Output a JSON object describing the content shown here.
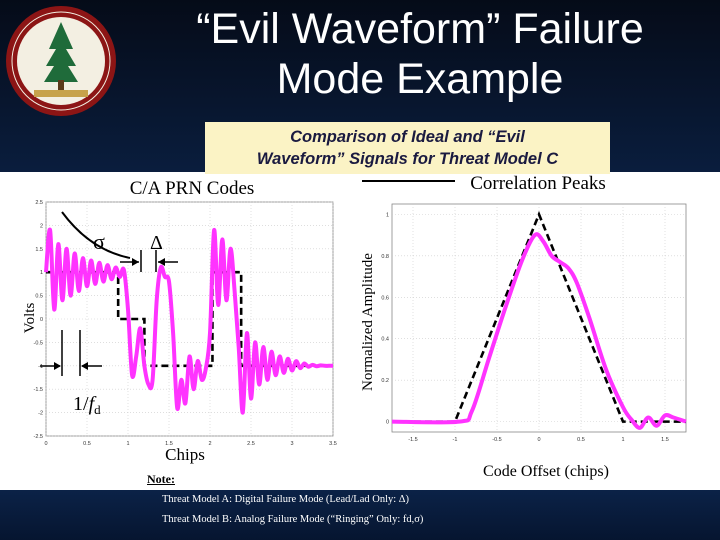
{
  "slide": {
    "title_line1": "“Evil Waveform” Failure",
    "title_line2": "Mode Example",
    "subtitle_line1": "Comparison of Ideal and “Evil",
    "subtitle_line2": "Waveform” Signals for Threat Model C",
    "note_label": "Note:",
    "note_line1": "Threat Model A: Digital Failure Mode (Lead/Lad Only: Δ)",
    "note_line2": "Threat Model B: Analog Failure Mode (“Ringing” Only: fd,σ)"
  },
  "left_chart_labels": {
    "title": "C/A PRN Codes",
    "xlabel": "Chips",
    "ylabel": "Volts",
    "sigma": "σ",
    "delta": "Δ",
    "freq_prefix": "1/",
    "freq_var": "f",
    "freq_sub": "d"
  },
  "right_chart_labels": {
    "title": "Correlation Peaks",
    "xlabel": "Code Offset (chips)",
    "ylabel": "Normalized Amplitude"
  },
  "chart_data": [
    {
      "type": "line",
      "title": "C/A PRN Codes",
      "xlabel": "Chips",
      "ylabel": "Volts",
      "xlim": [
        0,
        3.5
      ],
      "ylim": [
        -2.5,
        2.5
      ],
      "xticks": [
        "0",
        "0.5",
        "1",
        "1.5",
        "2",
        "2.5",
        "3",
        "3.5"
      ],
      "yticks": [
        "-2.5",
        "-2",
        "-1.5",
        "-1",
        "-0.5",
        "0",
        "0.5",
        "1",
        "1.5",
        "2",
        "2.5"
      ],
      "series": [
        {
          "style": "dashed",
          "color": "#000000",
          "x": [
            0,
            0.88,
            0.88,
            1.2,
            1.2,
            2.03,
            2.03,
            2.38,
            2.38,
            3.5
          ],
          "y": [
            1,
            1,
            0,
            0,
            -1,
            -1,
            1,
            1,
            -1,
            -1
          ]
        },
        {
          "style": "solid",
          "color": "#ff33ff",
          "x": [
            0,
            0.05,
            0.1,
            0.15,
            0.2,
            0.25,
            0.3,
            0.35,
            0.4,
            0.45,
            0.5,
            0.55,
            0.6,
            0.65,
            0.7,
            0.75,
            0.8,
            0.85,
            0.9,
            0.95,
            1.0,
            1.05,
            1.1,
            1.15,
            1.2,
            1.25,
            1.3,
            1.35,
            1.4,
            1.45,
            1.5,
            1.55,
            1.6,
            1.65,
            1.7,
            1.75,
            1.8,
            1.85,
            1.9,
            1.95,
            2.0,
            2.05,
            2.1,
            2.15,
            2.2,
            2.25,
            2.3,
            2.35,
            2.4,
            2.45,
            2.5,
            2.55,
            2.6,
            2.65,
            2.7,
            2.75,
            2.8,
            2.85,
            2.9,
            2.95,
            3.0,
            3.05,
            3.1,
            3.15,
            3.2,
            3.25,
            3.3,
            3.35,
            3.4,
            3.45,
            3.5
          ],
          "y": [
            1.0,
            1.9,
            0.2,
            1.6,
            0.4,
            1.5,
            0.5,
            1.4,
            0.6,
            1.3,
            0.7,
            1.25,
            0.75,
            1.2,
            0.8,
            1.15,
            0.85,
            1.1,
            0.9,
            1.05,
            0.2,
            -1.2,
            -0.8,
            -0.2,
            -1.0,
            -1.4,
            -1.3,
            0.4,
            1.1,
            0.9,
            0.8,
            -0.3,
            -1.9,
            -1.3,
            -1.8,
            -0.8,
            -1.5,
            -0.9,
            -1.3,
            -1.05,
            -0.3,
            1.9,
            0.3,
            1.7,
            0.4,
            1.5,
            0.6,
            -0.6,
            -2.0,
            -0.3,
            -1.7,
            -0.5,
            -1.4,
            -0.6,
            -1.3,
            -0.7,
            -1.2,
            -0.8,
            -1.15,
            -0.85,
            -1.1,
            -0.9,
            -1.05,
            -0.95,
            -1.02,
            -0.98,
            -1.01,
            -0.99,
            -1.0,
            -1.0,
            -1.0
          ]
        }
      ]
    },
    {
      "type": "line",
      "title": "Correlation Peaks",
      "xlabel": "Code Offset (chips)",
      "ylabel": "Normalized Amplitude",
      "xlim": [
        -1.75,
        1.75
      ],
      "ylim": [
        -0.05,
        1.05
      ],
      "xticks": [
        "-1.5",
        "-1",
        "-0.5",
        "0",
        "0.5",
        "1",
        "1.5"
      ],
      "yticks": [
        "0",
        "0.2",
        "0.4",
        "0.6",
        "0.8",
        "1"
      ],
      "series": [
        {
          "style": "dashed",
          "color": "#000000",
          "x": [
            -1.75,
            -1.0,
            0.0,
            1.0,
            1.75
          ],
          "y": [
            0,
            0,
            1,
            0,
            0
          ]
        },
        {
          "style": "solid",
          "color": "#ff33ff",
          "x": [
            -1.75,
            -0.95,
            -0.8,
            -0.6,
            -0.4,
            -0.2,
            -0.05,
            0.05,
            0.15,
            0.25,
            0.35,
            0.45,
            0.6,
            0.8,
            1.0,
            1.1,
            1.2,
            1.3,
            1.4,
            1.5,
            1.6,
            1.75
          ],
          "y": [
            0,
            0,
            0.05,
            0.3,
            0.55,
            0.78,
            0.9,
            0.87,
            0.8,
            0.77,
            0.74,
            0.67,
            0.5,
            0.25,
            0.07,
            0.01,
            -0.03,
            0.02,
            -0.02,
            0.03,
            0.02,
            0.0
          ]
        }
      ]
    }
  ]
}
